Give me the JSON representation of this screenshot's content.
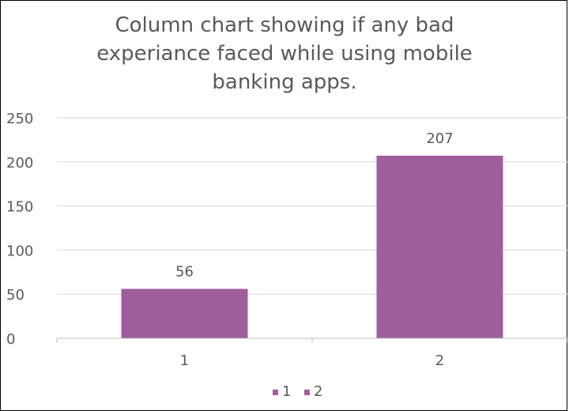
{
  "chart_data": {
    "type": "bar",
    "title_lines": [
      "Column chart showing if any bad",
      "experiance faced while using mobile",
      "banking apps."
    ],
    "categories": [
      "1",
      "2"
    ],
    "values": [
      56,
      207
    ],
    "data_labels": [
      "56",
      "207"
    ],
    "y_ticks": [
      "0",
      "50",
      "100",
      "150",
      "200",
      "250"
    ],
    "ylim": [
      0,
      250
    ],
    "legend": [
      "1",
      "2"
    ],
    "legend_placement": "bottom",
    "grid": true,
    "bar_color": "#9E5E9B"
  }
}
